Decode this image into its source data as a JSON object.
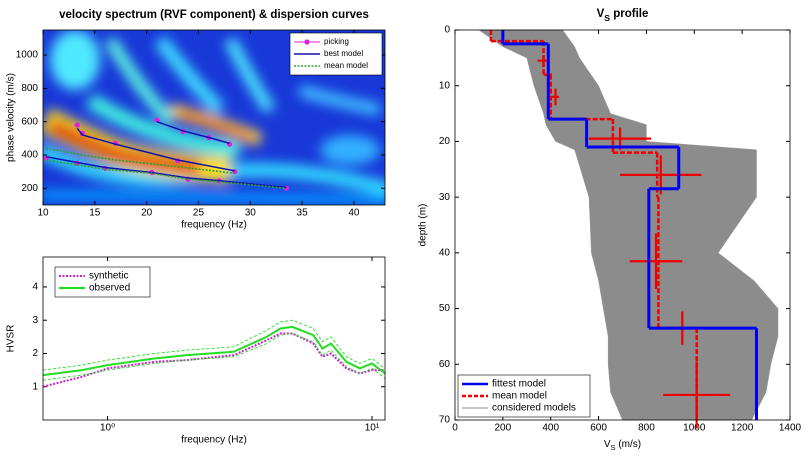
{
  "chart_data": [
    {
      "type": "spectrum",
      "title": "velocity spectrum (RVF component) & dispersion curves",
      "xlabel": "frequency (Hz)",
      "ylabel": "phase velocity (m/s)",
      "xlim": [
        10,
        43
      ],
      "ylim": [
        100,
        1150
      ],
      "xticks": [
        10,
        15,
        20,
        25,
        30,
        35,
        40
      ],
      "yticks": [
        200,
        400,
        600,
        800,
        1000
      ],
      "legend": "upper right",
      "series": [
        {
          "name": "picking",
          "color": "#e020e0",
          "x": [
            10.3,
            13.3,
            16,
            20.5,
            24,
            27,
            33.5,
            13.3,
            13.8,
            17,
            23,
            28.5,
            21,
            23.5,
            26,
            28
          ],
          "values": [
            380,
            350,
            320,
            295,
            255,
            245,
            200,
            580,
            530,
            470,
            365,
            300,
            610,
            540,
            505,
            465
          ]
        },
        {
          "name": "best model",
          "color": "#1010b0",
          "x": [
            10.3,
            13.3,
            16,
            20.5,
            24,
            27,
            33.5,
            null,
            13.3,
            13.8,
            17,
            23,
            28.5,
            null,
            21,
            23.5,
            26,
            28
          ],
          "values": [
            390,
            355,
            325,
            295,
            262,
            245,
            205,
            null,
            560,
            520,
            465,
            370,
            305,
            null,
            600,
            545,
            505,
            470
          ]
        },
        {
          "name": "mean model",
          "color": "#30a030",
          "x": [
            10.3,
            13.3,
            16,
            20.5,
            24,
            27,
            33.5,
            null,
            10.3,
            13.8,
            17,
            23,
            28.5
          ],
          "values": [
            370,
            340,
            315,
            290,
            255,
            240,
            200,
            null,
            440,
            400,
            370,
            330,
            290
          ]
        }
      ]
    },
    {
      "type": "line",
      "xlabel": "frequency (Hz)",
      "ylabel": "HVSR",
      "xscale": "log",
      "xlim": [
        0.57,
        11.2
      ],
      "ylim": [
        0,
        4.9
      ],
      "xticks": [
        {
          "value": 1,
          "label": "10⁰"
        },
        {
          "value": 10,
          "label": "10¹"
        }
      ],
      "yticks": [
        1,
        2,
        3,
        4
      ],
      "legend": "upper left",
      "x": [
        0.57,
        0.8,
        1,
        1.5,
        2,
        3,
        4,
        4.5,
        5,
        6,
        6.5,
        7,
        8,
        9,
        10,
        11.2
      ],
      "series": [
        {
          "name": "synthetic",
          "color": "#cc22cc",
          "values": [
            1.0,
            1.3,
            1.55,
            1.75,
            1.8,
            1.95,
            2.4,
            2.6,
            2.6,
            2.3,
            1.9,
            2.0,
            1.55,
            1.4,
            1.5,
            1.5
          ]
        },
        {
          "name": "observed",
          "color": "#22dd22",
          "values": [
            1.35,
            1.5,
            1.65,
            1.85,
            1.95,
            2.05,
            2.5,
            2.75,
            2.8,
            2.55,
            2.15,
            2.3,
            1.75,
            1.55,
            1.7,
            1.4
          ],
          "lower": [
            1.2,
            1.35,
            1.5,
            1.7,
            1.8,
            1.9,
            2.3,
            2.55,
            2.6,
            2.35,
            1.95,
            2.1,
            1.6,
            1.4,
            1.55,
            1.25
          ],
          "upper": [
            1.5,
            1.65,
            1.8,
            2.0,
            2.1,
            2.2,
            2.7,
            2.95,
            3.0,
            2.75,
            2.35,
            2.5,
            1.9,
            1.7,
            1.85,
            1.55
          ]
        }
      ]
    },
    {
      "type": "profile",
      "title": {
        "main": "V",
        "sub": "S",
        "rest": " profile"
      },
      "xlabel": {
        "main": "V",
        "sub": "S",
        "rest": " (m/s)"
      },
      "ylabel": "depth (m)",
      "xlim": [
        0,
        1400
      ],
      "ylim": [
        0,
        70
      ],
      "y_inverted": true,
      "xticks": [
        0,
        200,
        400,
        600,
        800,
        1000,
        1200,
        1400
      ],
      "yticks": [
        0,
        10,
        20,
        30,
        40,
        50,
        60,
        70
      ],
      "legend": "lower left",
      "series": [
        {
          "name": "fittest model",
          "color": "#0000ee",
          "depth_top": [
            0,
            2.5,
            16,
            21,
            28.5,
            53.5
          ],
          "values": [
            200,
            390,
            550,
            935,
            810,
            1260
          ]
        },
        {
          "name": "mean model",
          "color": "#ee0000",
          "depth_top": [
            0,
            2,
            8,
            16,
            22,
            30,
            53.5
          ],
          "values": [
            150,
            370,
            400,
            660,
            845,
            850,
            1010
          ],
          "crosses": {
            "depth": [
              5.5,
              8,
              12,
              19.5,
              26,
              41.5,
              53.5,
              65.5
            ],
            "vs": [
              370,
              390,
              420,
              690,
              860,
              840,
              950,
              1010
            ],
            "vs_err": [
              25,
              15,
              15,
              130,
              170,
              110,
              70,
              140
            ],
            "depth_err": [
              1,
              1.5,
              1.5,
              2,
              3.5,
              5,
              3,
              6
            ]
          }
        },
        {
          "name": "considered models",
          "color": "#8c8c8c",
          "depth": [
            0,
            3,
            5,
            10,
            15,
            17,
            20,
            21.5,
            30,
            40,
            45,
            50,
            55,
            60,
            65,
            70
          ],
          "min": [
            100,
            200,
            300,
            330,
            370,
            380,
            420,
            500,
            560,
            570,
            600,
            620,
            640,
            640,
            650,
            700
          ],
          "max": [
            450,
            500,
            520,
            600,
            650,
            800,
            800,
            1260,
            1260,
            1100,
            1250,
            1350,
            1350,
            1320,
            1300,
            1240
          ]
        }
      ]
    }
  ]
}
